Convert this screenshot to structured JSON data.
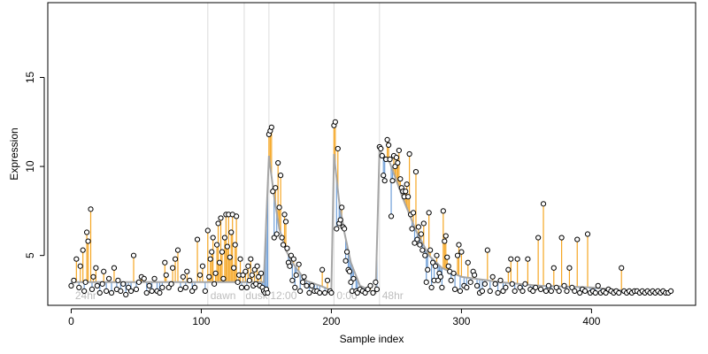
{
  "chart_data": {
    "type": "scatter",
    "title": "",
    "xlabel": "Sample index",
    "ylabel": "Expression",
    "xlim": [
      -18,
      480
    ],
    "ylim": [
      2.2,
      19.2
    ],
    "xticks": [
      0,
      100,
      200,
      300,
      400
    ],
    "yticks": [
      5,
      10,
      15
    ],
    "grid": false,
    "legend": "none",
    "colors": {
      "point_stroke": "#000000",
      "above_fit": "#f5a623",
      "below_fit": "#6f9fd8",
      "fit_line": "#a6a6a6",
      "boundary": "#dcdcdc",
      "segment_text": "#bdbdbd"
    },
    "boundaries": [
      105,
      133,
      152,
      202,
      237
    ],
    "segment_labels": [
      {
        "label": "24hr",
        "x": 3
      },
      {
        "label": "dawn",
        "x": 107
      },
      {
        "label": "dusk",
        "x": 134
      },
      {
        "label": "12:00",
        "x": 153
      },
      {
        "label": "0:00",
        "x": 204
      },
      {
        "label": "48hr",
        "x": 239
      }
    ],
    "fitted": [
      {
        "x": 0,
        "y": 3.5
      },
      {
        "x": 133,
        "y": 3.5
      },
      {
        "x": 148,
        "y": 3.5
      },
      {
        "x": 152,
        "y": 10.6
      },
      {
        "x": 156,
        "y": 8.3
      },
      {
        "x": 160,
        "y": 6.5
      },
      {
        "x": 165,
        "y": 5.3
      },
      {
        "x": 170,
        "y": 4.6
      },
      {
        "x": 180,
        "y": 3.6
      },
      {
        "x": 195,
        "y": 3.2
      },
      {
        "x": 200,
        "y": 3.0
      },
      {
        "x": 202,
        "y": 10.7
      },
      {
        "x": 206,
        "y": 8.0
      },
      {
        "x": 210,
        "y": 6.3
      },
      {
        "x": 215,
        "y": 4.6
      },
      {
        "x": 222,
        "y": 3.3
      },
      {
        "x": 234,
        "y": 2.9
      },
      {
        "x": 237,
        "y": 10.9
      },
      {
        "x": 245,
        "y": 10.2
      },
      {
        "x": 255,
        "y": 8.2
      },
      {
        "x": 265,
        "y": 6.4
      },
      {
        "x": 275,
        "y": 5.0
      },
      {
        "x": 285,
        "y": 4.3
      },
      {
        "x": 300,
        "y": 3.8
      },
      {
        "x": 330,
        "y": 3.5
      },
      {
        "x": 360,
        "y": 3.3
      },
      {
        "x": 400,
        "y": 3.2
      },
      {
        "x": 430,
        "y": 3.0
      },
      {
        "x": 462,
        "y": 2.9
      }
    ],
    "points": [
      [
        0,
        3.3
      ],
      [
        2,
        3.6
      ],
      [
        4,
        4.8
      ],
      [
        6,
        3.2
      ],
      [
        7,
        4.4
      ],
      [
        9,
        5.3
      ],
      [
        10,
        3.0
      ],
      [
        11,
        3.5
      ],
      [
        12,
        6.3
      ],
      [
        13,
        5.8
      ],
      [
        15,
        7.6
      ],
      [
        16,
        3.1
      ],
      [
        17,
        3.8
      ],
      [
        19,
        4.3
      ],
      [
        20,
        3.3
      ],
      [
        22,
        2.9
      ],
      [
        24,
        3.4
      ],
      [
        25,
        4.1
      ],
      [
        27,
        3.0
      ],
      [
        29,
        3.7
      ],
      [
        31,
        2.9
      ],
      [
        33,
        4.3
      ],
      [
        35,
        3.1
      ],
      [
        36,
        3.6
      ],
      [
        38,
        3.0
      ],
      [
        40,
        3.4
      ],
      [
        42,
        2.8
      ],
      [
        44,
        3.2
      ],
      [
        46,
        3.0
      ],
      [
        48,
        5.0
      ],
      [
        50,
        3.1
      ],
      [
        52,
        3.5
      ],
      [
        54,
        3.8
      ],
      [
        56,
        3.7
      ],
      [
        58,
        2.9
      ],
      [
        60,
        3.3
      ],
      [
        62,
        3.0
      ],
      [
        64,
        3.7
      ],
      [
        66,
        3.0
      ],
      [
        68,
        2.9
      ],
      [
        70,
        3.2
      ],
      [
        72,
        4.6
      ],
      [
        73,
        3.9
      ],
      [
        75,
        3.2
      ],
      [
        77,
        3.4
      ],
      [
        78,
        4.3
      ],
      [
        80,
        4.8
      ],
      [
        82,
        5.3
      ],
      [
        84,
        3.1
      ],
      [
        86,
        3.8
      ],
      [
        88,
        3.2
      ],
      [
        89,
        4.1
      ],
      [
        91,
        3.6
      ],
      [
        93,
        3.0
      ],
      [
        95,
        3.2
      ],
      [
        97,
        5.9
      ],
      [
        99,
        3.9
      ],
      [
        101,
        4.4
      ],
      [
        103,
        3.0
      ],
      [
        105,
        6.4
      ],
      [
        106,
        3.8
      ],
      [
        107,
        4.8
      ],
      [
        108,
        5.2
      ],
      [
        109,
        6.0
      ],
      [
        110,
        3.4
      ],
      [
        111,
        4.0
      ],
      [
        112,
        5.6
      ],
      [
        113,
        6.8
      ],
      [
        114,
        4.6
      ],
      [
        115,
        7.1
      ],
      [
        116,
        5.2
      ],
      [
        117,
        3.7
      ],
      [
        118,
        6.0
      ],
      [
        119,
        7.3
      ],
      [
        120,
        5.5
      ],
      [
        121,
        7.3
      ],
      [
        122,
        4.9
      ],
      [
        123,
        6.3
      ],
      [
        124,
        7.3
      ],
      [
        125,
        4.3
      ],
      [
        126,
        5.6
      ],
      [
        127,
        7.2
      ],
      [
        128,
        3.5
      ],
      [
        129,
        3.9
      ],
      [
        130,
        4.8
      ],
      [
        131,
        3.2
      ],
      [
        132,
        3.9
      ],
      [
        134,
        4.1
      ],
      [
        135,
        3.2
      ],
      [
        136,
        4.4
      ],
      [
        137,
        3.6
      ],
      [
        138,
        4.8
      ],
      [
        139,
        3.9
      ],
      [
        140,
        3.3
      ],
      [
        141,
        4.2
      ],
      [
        142,
        3.4
      ],
      [
        143,
        4.4
      ],
      [
        144,
        3.8
      ],
      [
        145,
        3.3
      ],
      [
        146,
        4.0
      ],
      [
        147,
        3.2
      ],
      [
        148,
        3.0
      ],
      [
        149,
        2.9
      ],
      [
        150,
        3.1
      ],
      [
        151,
        2.9
      ],
      [
        152,
        11.8
      ],
      [
        153,
        12.0
      ],
      [
        154,
        12.2
      ],
      [
        155,
        8.6
      ],
      [
        156,
        6.0
      ],
      [
        157,
        8.8
      ],
      [
        158,
        6.2
      ],
      [
        159,
        10.2
      ],
      [
        160,
        7.7
      ],
      [
        161,
        9.5
      ],
      [
        162,
        6.0
      ],
      [
        163,
        5.6
      ],
      [
        164,
        7.3
      ],
      [
        165,
        6.9
      ],
      [
        166,
        5.4
      ],
      [
        167,
        4.6
      ],
      [
        168,
        4.4
      ],
      [
        169,
        5.0
      ],
      [
        170,
        3.6
      ],
      [
        171,
        4.8
      ],
      [
        172,
        3.2
      ],
      [
        173,
        3.9
      ],
      [
        175,
        4.5
      ],
      [
        176,
        3.0
      ],
      [
        178,
        3.5
      ],
      [
        179,
        3.8
      ],
      [
        181,
        3.3
      ],
      [
        183,
        2.9
      ],
      [
        185,
        3.3
      ],
      [
        187,
        3.0
      ],
      [
        189,
        3.0
      ],
      [
        191,
        2.9
      ],
      [
        193,
        4.2
      ],
      [
        195,
        2.9
      ],
      [
        197,
        3.6
      ],
      [
        199,
        3.0
      ],
      [
        200,
        2.9
      ],
      [
        202,
        12.3
      ],
      [
        203,
        12.5
      ],
      [
        204,
        6.5
      ],
      [
        205,
        11.0
      ],
      [
        206,
        6.8
      ],
      [
        207,
        7.0
      ],
      [
        208,
        7.7
      ],
      [
        209,
        6.6
      ],
      [
        210,
        6.5
      ],
      [
        211,
        4.7
      ],
      [
        212,
        5.2
      ],
      [
        213,
        4.2
      ],
      [
        214,
        4.1
      ],
      [
        215,
        3.5
      ],
      [
        216,
        3.0
      ],
      [
        217,
        3.7
      ],
      [
        219,
        3.0
      ],
      [
        220,
        2.9
      ],
      [
        222,
        3.1
      ],
      [
        224,
        3.0
      ],
      [
        226,
        2.9
      ],
      [
        228,
        3.1
      ],
      [
        230,
        3.3
      ],
      [
        232,
        2.9
      ],
      [
        234,
        3.5
      ],
      [
        235,
        3.1
      ],
      [
        237,
        11.1
      ],
      [
        238,
        11.0
      ],
      [
        239,
        10.6
      ],
      [
        240,
        9.5
      ],
      [
        241,
        9.2
      ],
      [
        242,
        10.4
      ],
      [
        243,
        11.5
      ],
      [
        244,
        11.2
      ],
      [
        245,
        10.4
      ],
      [
        246,
        7.2
      ],
      [
        247,
        9.2
      ],
      [
        248,
        10.6
      ],
      [
        249,
        10.0
      ],
      [
        250,
        10.5
      ],
      [
        251,
        10.2
      ],
      [
        252,
        10.9
      ],
      [
        253,
        9.3
      ],
      [
        254,
        8.8
      ],
      [
        255,
        8.6
      ],
      [
        256,
        8.3
      ],
      [
        257,
        8.6
      ],
      [
        258,
        9.0
      ],
      [
        259,
        8.3
      ],
      [
        260,
        10.7
      ],
      [
        261,
        7.3
      ],
      [
        262,
        6.5
      ],
      [
        263,
        7.4
      ],
      [
        264,
        5.7
      ],
      [
        265,
        9.7
      ],
      [
        266,
        5.9
      ],
      [
        267,
        6.6
      ],
      [
        268,
        5.6
      ],
      [
        269,
        6.2
      ],
      [
        270,
        5.3
      ],
      [
        271,
        6.8
      ],
      [
        272,
        5.0
      ],
      [
        273,
        3.5
      ],
      [
        274,
        4.2
      ],
      [
        275,
        7.4
      ],
      [
        276,
        5.3
      ],
      [
        277,
        3.2
      ],
      [
        278,
        4.6
      ],
      [
        279,
        3.6
      ],
      [
        280,
        4.4
      ],
      [
        281,
        5.0
      ],
      [
        282,
        3.6
      ],
      [
        283,
        4.0
      ],
      [
        284,
        3.8
      ],
      [
        285,
        3.2
      ],
      [
        286,
        7.5
      ],
      [
        287,
        5.8
      ],
      [
        288,
        6.1
      ],
      [
        289,
        4.9
      ],
      [
        290,
        4.4
      ],
      [
        291,
        4.1
      ],
      [
        292,
        3.6
      ],
      [
        294,
        4.0
      ],
      [
        295,
        3.1
      ],
      [
        297,
        5.0
      ],
      [
        298,
        5.6
      ],
      [
        299,
        3.0
      ],
      [
        300,
        5.2
      ],
      [
        302,
        3.3
      ],
      [
        304,
        3.2
      ],
      [
        305,
        4.6
      ],
      [
        307,
        3.5
      ],
      [
        309,
        4.1
      ],
      [
        310,
        3.9
      ],
      [
        312,
        3.3
      ],
      [
        314,
        2.9
      ],
      [
        316,
        3.0
      ],
      [
        318,
        3.4
      ],
      [
        320,
        5.3
      ],
      [
        322,
        3.0
      ],
      [
        324,
        3.8
      ],
      [
        326,
        3.4
      ],
      [
        328,
        2.9
      ],
      [
        330,
        3.6
      ],
      [
        332,
        3.0
      ],
      [
        334,
        3.2
      ],
      [
        336,
        4.2
      ],
      [
        338,
        4.8
      ],
      [
        339,
        3.4
      ],
      [
        341,
        3.0
      ],
      [
        343,
        4.8
      ],
      [
        345,
        3.2
      ],
      [
        347,
        3.0
      ],
      [
        349,
        3.4
      ],
      [
        351,
        4.8
      ],
      [
        353,
        3.1
      ],
      [
        355,
        3.0
      ],
      [
        357,
        3.2
      ],
      [
        359,
        6.0
      ],
      [
        361,
        3.1
      ],
      [
        363,
        7.9
      ],
      [
        365,
        3.0
      ],
      [
        367,
        3.3
      ],
      [
        369,
        3.0
      ],
      [
        371,
        4.3
      ],
      [
        373,
        3.2
      ],
      [
        375,
        3.0
      ],
      [
        377,
        6.0
      ],
      [
        379,
        3.3
      ],
      [
        381,
        3.0
      ],
      [
        383,
        4.3
      ],
      [
        385,
        3.2
      ],
      [
        387,
        3.0
      ],
      [
        389,
        5.9
      ],
      [
        391,
        2.9
      ],
      [
        393,
        3.1
      ],
      [
        395,
        3.0
      ],
      [
        397,
        6.2
      ],
      [
        399,
        2.9
      ],
      [
        401,
        3.0
      ],
      [
        403,
        2.9
      ],
      [
        405,
        3.3
      ],
      [
        407,
        2.9
      ],
      [
        409,
        3.0
      ],
      [
        411,
        2.9
      ],
      [
        413,
        3.1
      ],
      [
        415,
        3.0
      ],
      [
        417,
        2.9
      ],
      [
        419,
        3.0
      ],
      [
        421,
        2.9
      ],
      [
        423,
        4.3
      ],
      [
        425,
        3.0
      ],
      [
        427,
        2.9
      ],
      [
        429,
        3.0
      ],
      [
        431,
        2.9
      ],
      [
        433,
        3.0
      ],
      [
        435,
        3.0
      ],
      [
        437,
        2.9
      ],
      [
        439,
        3.0
      ],
      [
        441,
        2.9
      ],
      [
        443,
        3.0
      ],
      [
        445,
        2.9
      ],
      [
        447,
        3.0
      ],
      [
        449,
        2.9
      ],
      [
        451,
        3.0
      ],
      [
        453,
        2.9
      ],
      [
        455,
        3.0
      ],
      [
        457,
        2.9
      ],
      [
        459,
        2.9
      ],
      [
        461,
        3.0
      ]
    ]
  }
}
